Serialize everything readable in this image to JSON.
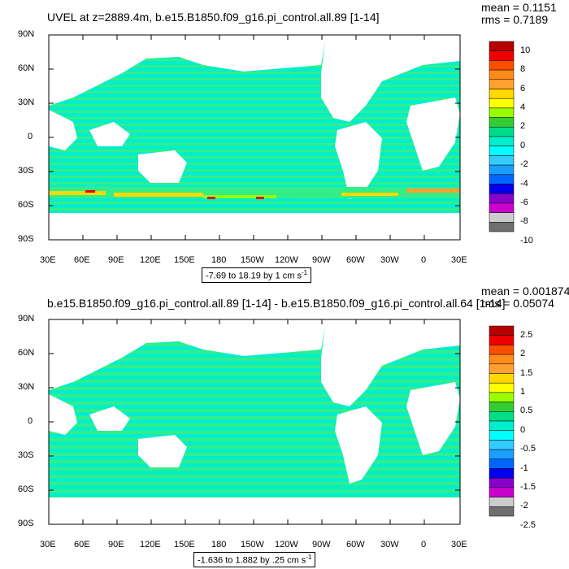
{
  "panels": [
    {
      "title": "UVEL at z=2889.4m, b.e15.B1850.f09_g16.pi_control.all.89 [1-14]",
      "mean": "mean = 0.1151",
      "rms": "rms = 0.7189",
      "range_text": "-7.69 to 18.19 by 1 cm s",
      "range_unit_exp": "-1",
      "colorbar_labels": [
        "10",
        "8",
        "6",
        "4",
        "2",
        "0",
        "-2",
        "-4",
        "-6",
        "-8",
        "-10"
      ]
    },
    {
      "title": "b.e15.B1850.f09_g16.pi_control.all.89 [1-14] - b.e15.B1850.f09_g16.pi_control.all.64 [1-14]",
      "mean": "mean = 0.001874",
      "rms": "rms = 0.05074",
      "range_text": "-1.636 to 1.882 by .25 cm s",
      "range_unit_exp": "-1",
      "colorbar_labels": [
        "2.5",
        "2",
        "1.5",
        "1",
        "0.5",
        "0",
        "-0.5",
        "-1",
        "-1.5",
        "-2",
        "-2.5"
      ]
    }
  ],
  "lat_labels": [
    "90N",
    "60N",
    "30N",
    "0",
    "30S",
    "60S",
    "90S"
  ],
  "lon_labels": [
    "30E",
    "60E",
    "90E",
    "120E",
    "150E",
    "180",
    "150W",
    "120W",
    "90W",
    "60W",
    "30W",
    "0",
    "30E"
  ],
  "colorbar_colors": [
    "#b50000",
    "#ee0000",
    "#ff4d00",
    "#ff8c1a",
    "#ffa030",
    "#ffd800",
    "#ffff00",
    "#99ff00",
    "#33cc33",
    "#00dd88",
    "#00eecc",
    "#00ffff",
    "#33ccff",
    "#1a9fff",
    "#0066ff",
    "#0000ee",
    "#8800cc",
    "#cc00cc",
    "#cccccc",
    "#6e6e6e"
  ],
  "colors": {
    "ocean_main": "#33ee88",
    "ocean_alt": "#00eecc",
    "land": "#ffffff"
  }
}
